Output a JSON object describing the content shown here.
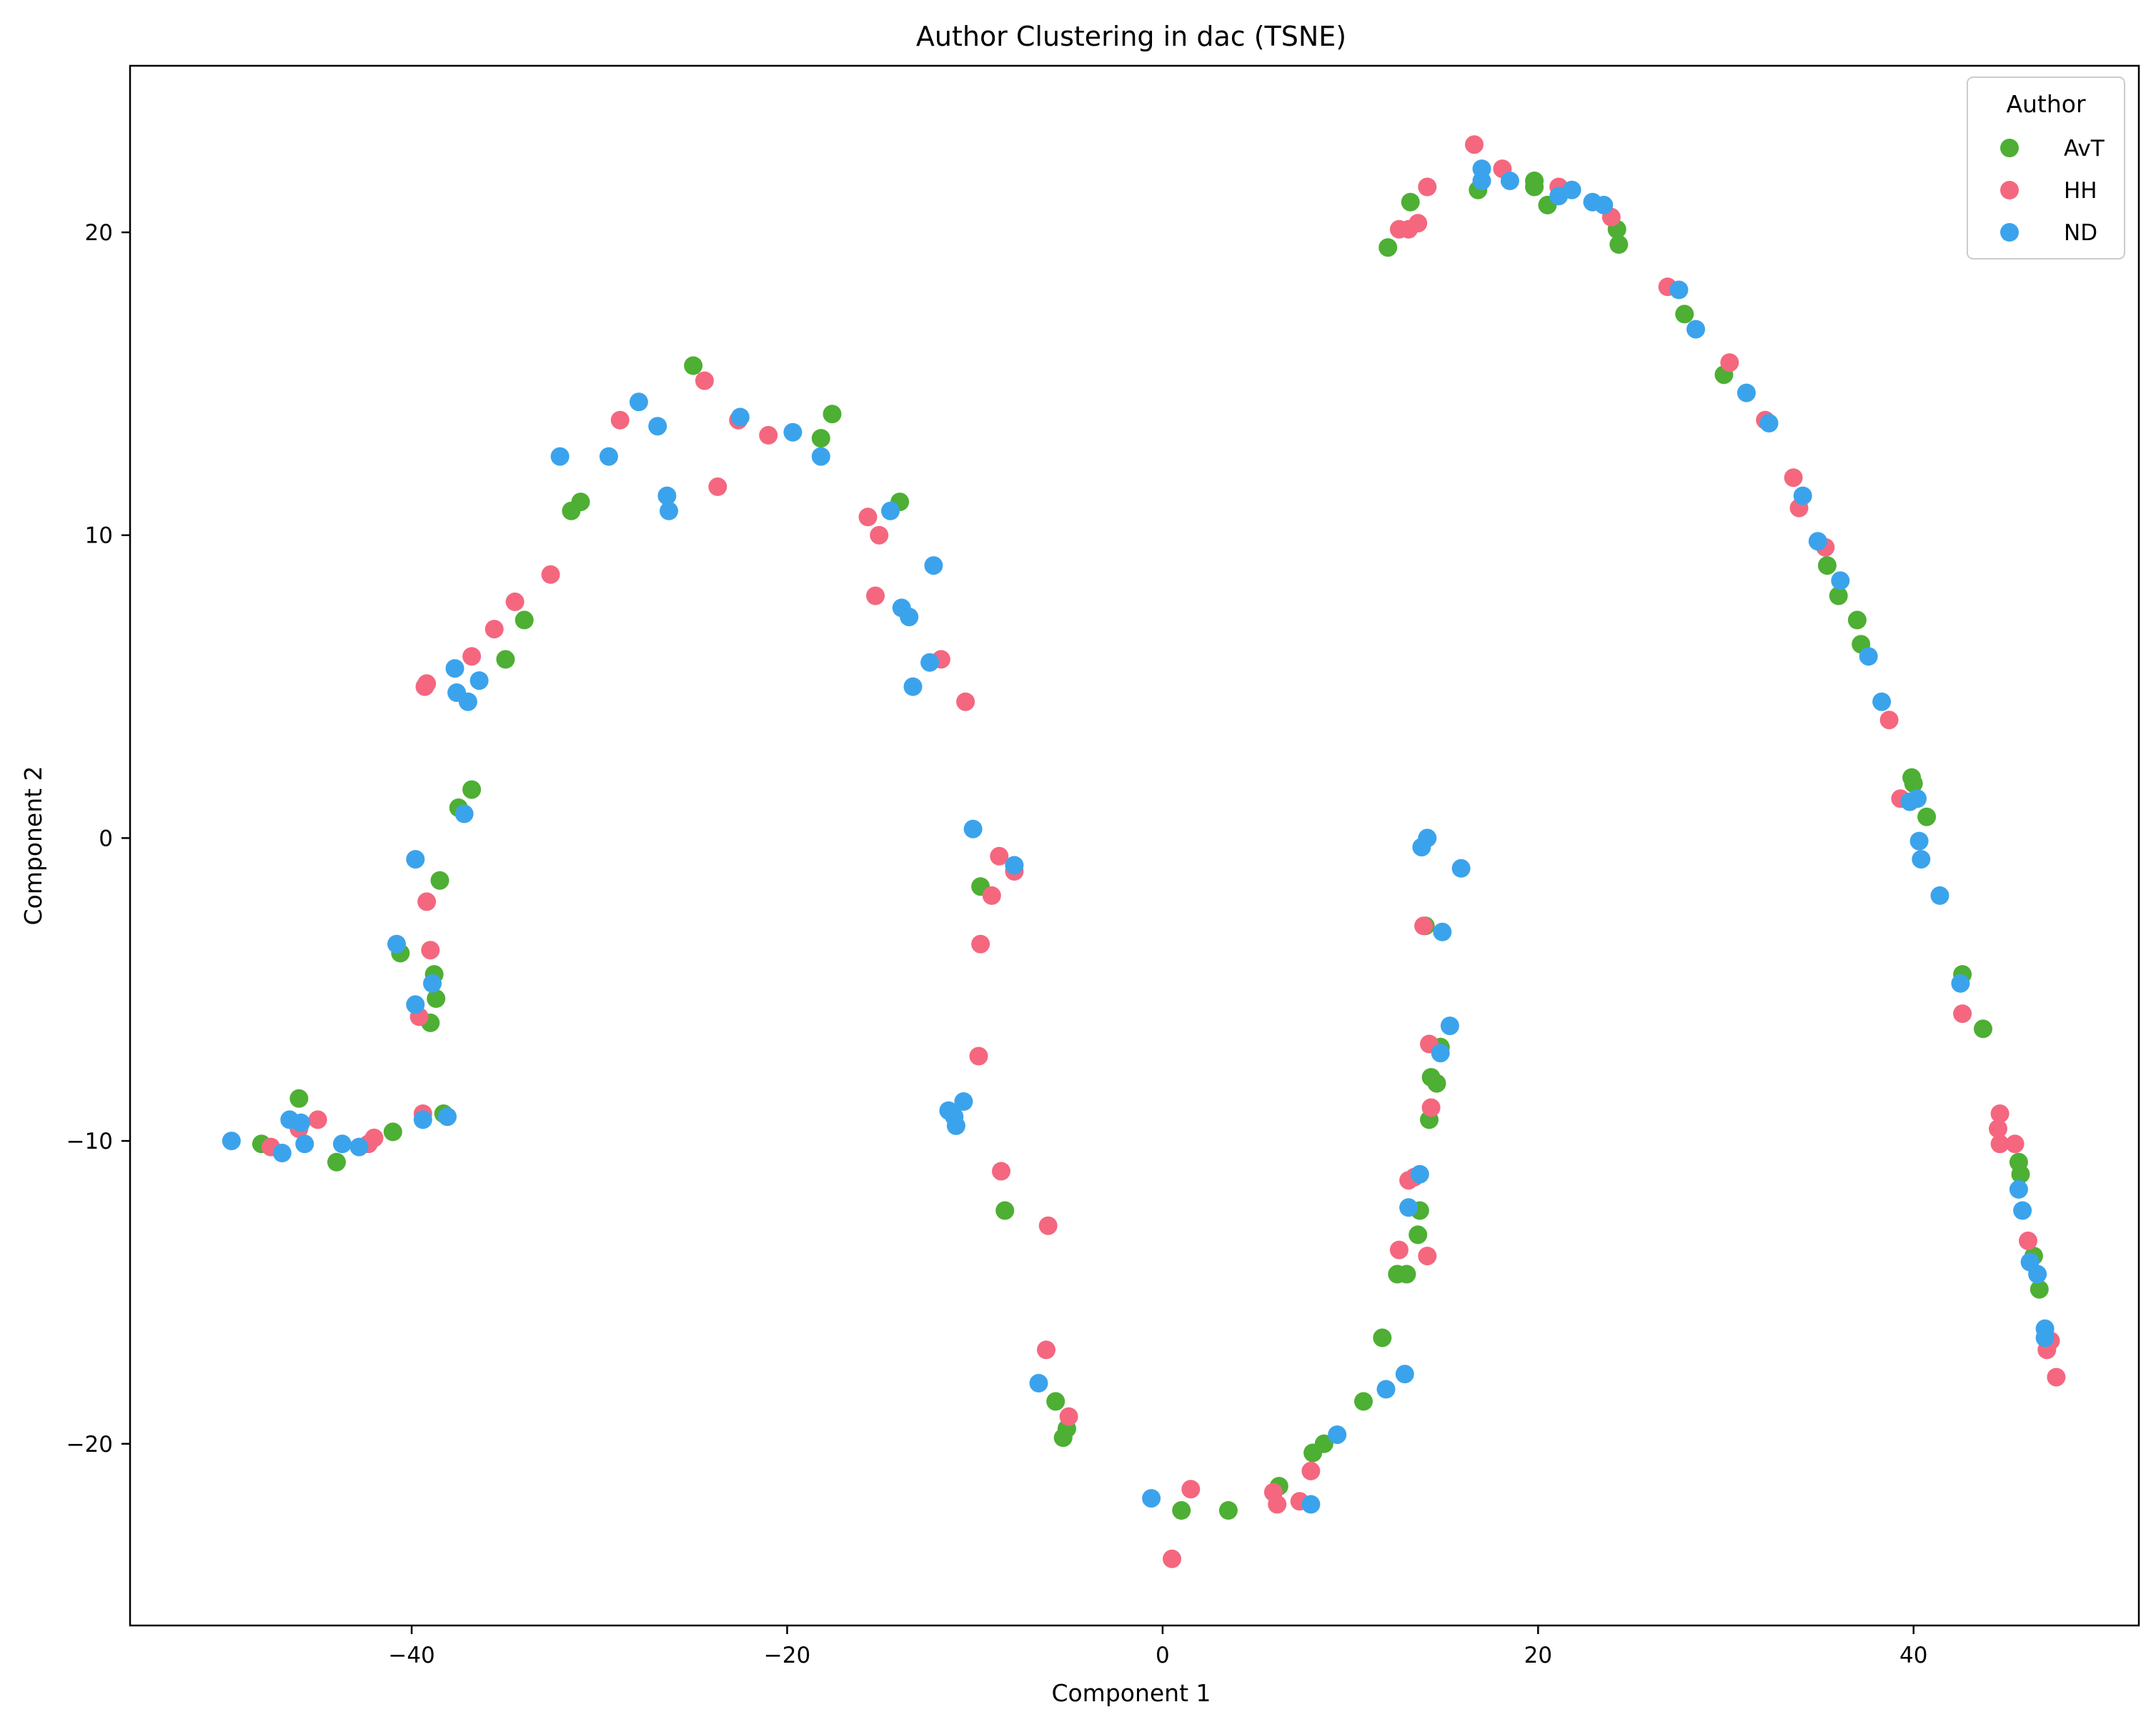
{
  "chart_data": {
    "type": "scatter",
    "title": "Author Clustering in dac (TSNE)",
    "xlabel": "Component 1",
    "ylabel": "Component 2",
    "xlim": [
      -55,
      52
    ],
    "ylim": [
      -26,
      25.5
    ],
    "xticks": [
      -40,
      -20,
      0,
      20,
      40
    ],
    "yticks": [
      -20,
      -10,
      0,
      10,
      20
    ],
    "x_tick_labels": [
      "−40",
      "−20",
      "0",
      "20",
      "40"
    ],
    "y_tick_labels": [
      "−20",
      "−10",
      "0",
      "10",
      "20"
    ],
    "grid": false,
    "legend": {
      "title": "Author",
      "position": "top-right"
    },
    "series": [
      {
        "name": "AvT",
        "color": "#4daf33",
        "points": [
          [
            -48,
            -10.1
          ],
          [
            -46,
            -8.6
          ],
          [
            -44,
            -10.7
          ],
          [
            -41,
            -9.7
          ],
          [
            -40.6,
            -3.8
          ],
          [
            -39,
            -6.1
          ],
          [
            -38.8,
            -4.5
          ],
          [
            -38.7,
            -5.3
          ],
          [
            -38.5,
            -1.4
          ],
          [
            -38.3,
            -9.1
          ],
          [
            -37.5,
            1
          ],
          [
            -36.8,
            1.6
          ],
          [
            -35,
            5.9
          ],
          [
            -34,
            7.2
          ],
          [
            -31.5,
            10.8
          ],
          [
            -31,
            11.1
          ],
          [
            -25,
            15.6
          ],
          [
            -18.2,
            13.2
          ],
          [
            -17.6,
            14
          ],
          [
            -14,
            11.1
          ],
          [
            -9.7,
            -1.6
          ],
          [
            -8.4,
            -12.3
          ],
          [
            -5.7,
            -18.6
          ],
          [
            -5.3,
            -19.8
          ],
          [
            -5.1,
            -19.5
          ],
          [
            1,
            -22.2
          ],
          [
            3.5,
            -22.2
          ],
          [
            6.2,
            -21.4
          ],
          [
            8,
            -20.3
          ],
          [
            8.6,
            -20
          ],
          [
            10.7,
            -18.6
          ],
          [
            11.7,
            -16.5
          ],
          [
            12,
            19.5
          ],
          [
            12.5,
            -14.4
          ],
          [
            13,
            -14.4
          ],
          [
            13.2,
            21
          ],
          [
            13.6,
            -13.1
          ],
          [
            13.7,
            -12.3
          ],
          [
            14,
            -2.9
          ],
          [
            14.2,
            -9.3
          ],
          [
            14.3,
            -7.9
          ],
          [
            14.6,
            -8.1
          ],
          [
            14.8,
            -6.9
          ],
          [
            16.8,
            21.4
          ],
          [
            19.8,
            21.7
          ],
          [
            19.8,
            21.5
          ],
          [
            20.5,
            20.9
          ],
          [
            24.2,
            20.1
          ],
          [
            24.3,
            19.6
          ],
          [
            27.8,
            17.3
          ],
          [
            29.9,
            15.3
          ],
          [
            35.4,
            9
          ],
          [
            36,
            8
          ],
          [
            37,
            7.2
          ],
          [
            37.2,
            6.4
          ],
          [
            39.9,
            2
          ],
          [
            40,
            1.8
          ],
          [
            40.7,
            0.7
          ],
          [
            42.6,
            -4.5
          ],
          [
            43.7,
            -6.3
          ],
          [
            45.6,
            -10.7
          ],
          [
            45.7,
            -11.1
          ],
          [
            46.4,
            -13.8
          ],
          [
            46.7,
            -14.9
          ]
        ]
      },
      {
        "name": "HH",
        "color": "#f4677f",
        "points": [
          [
            -47.5,
            -10.2
          ],
          [
            -46,
            -9.6
          ],
          [
            -45,
            -9.3
          ],
          [
            -42.3,
            -10.1
          ],
          [
            -42,
            -9.9
          ],
          [
            -39.6,
            -5.9
          ],
          [
            -39.4,
            -9.1
          ],
          [
            -39.3,
            5
          ],
          [
            -39.2,
            5.1
          ],
          [
            -39.2,
            -2.1
          ],
          [
            -39,
            -3.7
          ],
          [
            -36.8,
            6
          ],
          [
            -35.6,
            6.9
          ],
          [
            -34.5,
            7.8
          ],
          [
            -32.6,
            8.7
          ],
          [
            -28.9,
            13.8
          ],
          [
            -24.4,
            15.1
          ],
          [
            -23.7,
            11.6
          ],
          [
            -22.6,
            13.8
          ],
          [
            -21,
            13.3
          ],
          [
            -15.7,
            10.6
          ],
          [
            -15.3,
            8
          ],
          [
            -15.1,
            10
          ],
          [
            -11.8,
            5.9
          ],
          [
            -10.5,
            4.5
          ],
          [
            -9.8,
            -7.2
          ],
          [
            -9.7,
            -3.5
          ],
          [
            -9.1,
            -1.9
          ],
          [
            -8.7,
            -0.6
          ],
          [
            -8.6,
            -11
          ],
          [
            -7.9,
            -1.1
          ],
          [
            -6.2,
            -16.9
          ],
          [
            -6.1,
            -12.8
          ],
          [
            -5,
            -19.1
          ],
          [
            0.5,
            -23.8
          ],
          [
            1.5,
            -21.5
          ],
          [
            5.9,
            -21.6
          ],
          [
            6.1,
            -22
          ],
          [
            7.3,
            -21.9
          ],
          [
            7.9,
            -20.9
          ],
          [
            12.6,
            -13.6
          ],
          [
            12.6,
            20.1
          ],
          [
            13.1,
            20.1
          ],
          [
            13.1,
            -11.3
          ],
          [
            13.4,
            -11.2
          ],
          [
            13.6,
            20.3
          ],
          [
            13.9,
            -2.9
          ],
          [
            14.1,
            -13.8
          ],
          [
            14.1,
            21.5
          ],
          [
            14.2,
            -6.8
          ],
          [
            14.3,
            -8.9
          ],
          [
            16.6,
            22.9
          ],
          [
            18.1,
            22.1
          ],
          [
            21.1,
            21.5
          ],
          [
            23.9,
            20.5
          ],
          [
            26.9,
            18.2
          ],
          [
            30.2,
            15.7
          ],
          [
            32.1,
            13.8
          ],
          [
            33.6,
            11.9
          ],
          [
            33.9,
            10.9
          ],
          [
            35.3,
            9.6
          ],
          [
            38.7,
            3.9
          ],
          [
            39.3,
            1.3
          ],
          [
            42.6,
            -5.8
          ],
          [
            44.6,
            -9.1
          ],
          [
            44.5,
            -9.6
          ],
          [
            44.6,
            -10.1
          ],
          [
            45.4,
            -10.1
          ],
          [
            46.1,
            -13.3
          ],
          [
            47.1,
            -16.9
          ],
          [
            47.3,
            -16.6
          ],
          [
            47.6,
            -17.8
          ]
        ]
      },
      {
        "name": "ND",
        "color": "#3ba3ec",
        "points": [
          [
            -49.6,
            -10
          ],
          [
            -46.9,
            -10.4
          ],
          [
            -46.5,
            -9.3
          ],
          [
            -45.9,
            -9.4
          ],
          [
            -45.7,
            -10.1
          ],
          [
            -43.7,
            -10.1
          ],
          [
            -42.8,
            -10.2
          ],
          [
            -40.8,
            -3.5
          ],
          [
            -39.8,
            -0.7
          ],
          [
            -39.8,
            -5.5
          ],
          [
            -39.4,
            -9.3
          ],
          [
            -38.9,
            -4.8
          ],
          [
            -38.1,
            -9.2
          ],
          [
            -37.7,
            5.6
          ],
          [
            -37.6,
            4.8
          ],
          [
            -37.2,
            0.8
          ],
          [
            -37,
            4.5
          ],
          [
            -36.4,
            5.2
          ],
          [
            -32.1,
            12.6
          ],
          [
            -29.5,
            12.6
          ],
          [
            -27.9,
            14.4
          ],
          [
            -26.9,
            13.6
          ],
          [
            -26.4,
            11.3
          ],
          [
            -26.3,
            10.8
          ],
          [
            -22.5,
            13.9
          ],
          [
            -19.7,
            13.4
          ],
          [
            -18.2,
            12.6
          ],
          [
            -14.5,
            10.8
          ],
          [
            -13.9,
            7.6
          ],
          [
            -13.5,
            7.3
          ],
          [
            -13.3,
            5
          ],
          [
            -12.4,
            5.8
          ],
          [
            -12.2,
            9
          ],
          [
            -11.4,
            -9
          ],
          [
            -11.1,
            -9.2
          ],
          [
            -11,
            -9.5
          ],
          [
            -10.6,
            -8.7
          ],
          [
            -10.1,
            0.3
          ],
          [
            -7.9,
            -0.9
          ],
          [
            -6.6,
            -18
          ],
          [
            -0.6,
            -21.8
          ],
          [
            7.9,
            -22
          ],
          [
            9.3,
            -19.7
          ],
          [
            11.9,
            -18.2
          ],
          [
            12.9,
            -17.7
          ],
          [
            13.1,
            -12.2
          ],
          [
            13.7,
            -11.1
          ],
          [
            13.8,
            -0.3
          ],
          [
            14.1,
            0
          ],
          [
            14.8,
            -7.1
          ],
          [
            14.9,
            -3.1
          ],
          [
            15.3,
            -6.2
          ],
          [
            15.9,
            -1
          ],
          [
            17,
            22.1
          ],
          [
            17,
            21.7
          ],
          [
            18.5,
            21.7
          ],
          [
            21.1,
            21.2
          ],
          [
            21.8,
            21.4
          ],
          [
            22.9,
            21
          ],
          [
            23.5,
            20.9
          ],
          [
            27.5,
            18.1
          ],
          [
            28.4,
            16.8
          ],
          [
            31.1,
            14.7
          ],
          [
            32.3,
            13.7
          ],
          [
            34.1,
            11.3
          ],
          [
            34.9,
            9.8
          ],
          [
            36.1,
            8.5
          ],
          [
            37.6,
            6
          ],
          [
            38.3,
            4.5
          ],
          [
            39.8,
            1.2
          ],
          [
            40.2,
            1.3
          ],
          [
            40.3,
            -0.1
          ],
          [
            40.4,
            -0.7
          ],
          [
            41.4,
            -1.9
          ],
          [
            42.5,
            -4.8
          ],
          [
            45.6,
            -11.6
          ],
          [
            45.8,
            -12.3
          ],
          [
            46.2,
            -14
          ],
          [
            46.6,
            -14.4
          ],
          [
            47,
            -16.2
          ],
          [
            47,
            -16.5
          ]
        ]
      }
    ]
  }
}
